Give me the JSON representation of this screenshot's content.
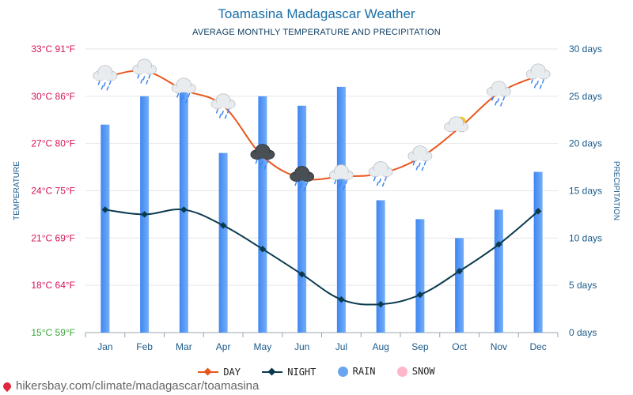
{
  "header": {
    "title": "Toamasina Madagascar Weather",
    "subtitle": "AVERAGE MONTHLY TEMPERATURE AND PRECIPITATION"
  },
  "footer": {
    "source": "hikersbay.com/climate/madagascar/toamasina"
  },
  "colors": {
    "day": "#e8561c",
    "night": "#0b3a4f",
    "rain": "#5a9bf5",
    "snow": "#ffb6c8",
    "left_axis": "#d6135a",
    "left_axis_min": "#3aa53a",
    "right_axis": "#1b5a8a"
  },
  "chart_data": {
    "type": "line",
    "title": "Toamasina Madagascar Weather",
    "subtitle": "AVERAGE MONTHLY TEMPERATURE AND PRECIPITATION",
    "categories": [
      "Jan",
      "Feb",
      "Mar",
      "Apr",
      "May",
      "Jun",
      "Jul",
      "Aug",
      "Sep",
      "Oct",
      "Nov",
      "Dec"
    ],
    "left_axis": {
      "label": "TEMPERATURE",
      "range": [
        15,
        33
      ],
      "ticks": [
        {
          "value": 15,
          "label": "15°C 59°F"
        },
        {
          "value": 18,
          "label": "18°C 64°F"
        },
        {
          "value": 21,
          "label": "21°C 69°F"
        },
        {
          "value": 24,
          "label": "24°C 75°F"
        },
        {
          "value": 27,
          "label": "27°C 80°F"
        },
        {
          "value": 30,
          "label": "30°C 86°F"
        },
        {
          "value": 33,
          "label": "33°C 91°F"
        }
      ]
    },
    "right_axis": {
      "label": "PRECIPITATION",
      "range": [
        0,
        30
      ],
      "ticks": [
        {
          "value": 0,
          "label": "0 days"
        },
        {
          "value": 5,
          "label": "5 days"
        },
        {
          "value": 10,
          "label": "10 days"
        },
        {
          "value": 15,
          "label": "15 days"
        },
        {
          "value": 20,
          "label": "20 days"
        },
        {
          "value": 25,
          "label": "25 days"
        },
        {
          "value": 30,
          "label": "30 days"
        }
      ]
    },
    "grid": true,
    "legend": {
      "position": "bottom"
    },
    "series": [
      {
        "name": "DAY",
        "kind": "line",
        "axis": "left",
        "values": [
          31.2,
          31.6,
          30.4,
          29.4,
          26.2,
          24.8,
          24.9,
          25.1,
          26.1,
          28.0,
          30.2,
          31.3
        ]
      },
      {
        "name": "NIGHT",
        "kind": "line",
        "axis": "left",
        "values": [
          22.8,
          22.5,
          22.8,
          21.8,
          20.3,
          18.7,
          17.1,
          16.8,
          17.4,
          18.9,
          20.6,
          22.7
        ]
      },
      {
        "name": "RAIN",
        "kind": "bar",
        "axis": "right",
        "values": [
          22,
          25,
          26,
          19,
          25,
          24,
          26,
          14,
          12,
          10,
          13,
          17
        ]
      },
      {
        "name": "SNOW",
        "kind": "bar",
        "axis": "right",
        "values": [
          0,
          0,
          0,
          0,
          0,
          0,
          0,
          0,
          0,
          0,
          0,
          0
        ]
      }
    ],
    "weather_icons": [
      "rain-cloud",
      "rain-cloud",
      "rain-cloud",
      "rain-cloud",
      "storm-cloud",
      "storm-cloud",
      "rain-cloud",
      "rain-cloud",
      "rain-cloud",
      "partly-cloudy",
      "rain-cloud",
      "rain-cloud"
    ]
  }
}
